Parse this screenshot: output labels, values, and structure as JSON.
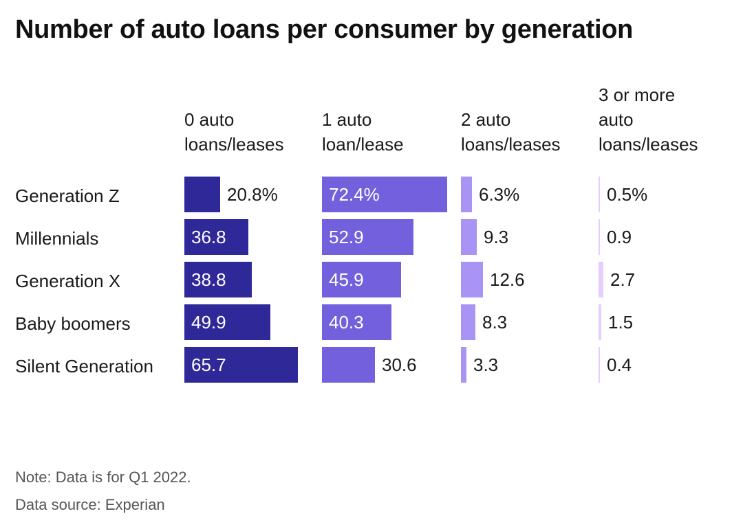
{
  "title": "Number of auto loans per consumer by generation",
  "footer": {
    "note": "Note: Data is for Q1 2022.",
    "source": "Data source: Experian"
  },
  "colors": [
    "#2e2899",
    "#7360dd",
    "#a994f6",
    "#e5cdfd"
  ],
  "chart_data": {
    "type": "table",
    "columns": [
      "0 auto loans/leases",
      "1 auto loan/lease",
      "2 auto loans/leases",
      "3 or more auto loans/leases"
    ],
    "column_header_lines": [
      [
        "0 auto",
        "loans/leases"
      ],
      [
        "1 auto",
        "loan/lease"
      ],
      [
        "2 auto",
        "loans/leases"
      ],
      [
        "3 or more",
        "auto",
        "loans/leases"
      ]
    ],
    "rows": [
      "Generation Z",
      "Millennials",
      "Generation X",
      "Baby boomers",
      "Silent Generation"
    ],
    "values": [
      [
        20.8,
        72.4,
        6.3,
        0.5
      ],
      [
        36.8,
        52.9,
        9.3,
        0.9
      ],
      [
        38.8,
        45.9,
        12.6,
        2.7
      ],
      [
        49.9,
        40.3,
        8.3,
        1.5
      ],
      [
        65.7,
        30.6,
        3.3,
        0.4
      ]
    ],
    "value_labels": [
      [
        "20.8%",
        "72.4%",
        "6.3%",
        "0.5%"
      ],
      [
        "36.8",
        "52.9",
        "9.3",
        "0.9"
      ],
      [
        "38.8",
        "45.9",
        "12.6",
        "2.7"
      ],
      [
        "49.9",
        "40.3",
        "8.3",
        "1.5"
      ],
      [
        "65.7",
        "30.6",
        "3.3",
        "0.4"
      ]
    ],
    "unit": "%",
    "bar_scale_max": 72.4
  }
}
